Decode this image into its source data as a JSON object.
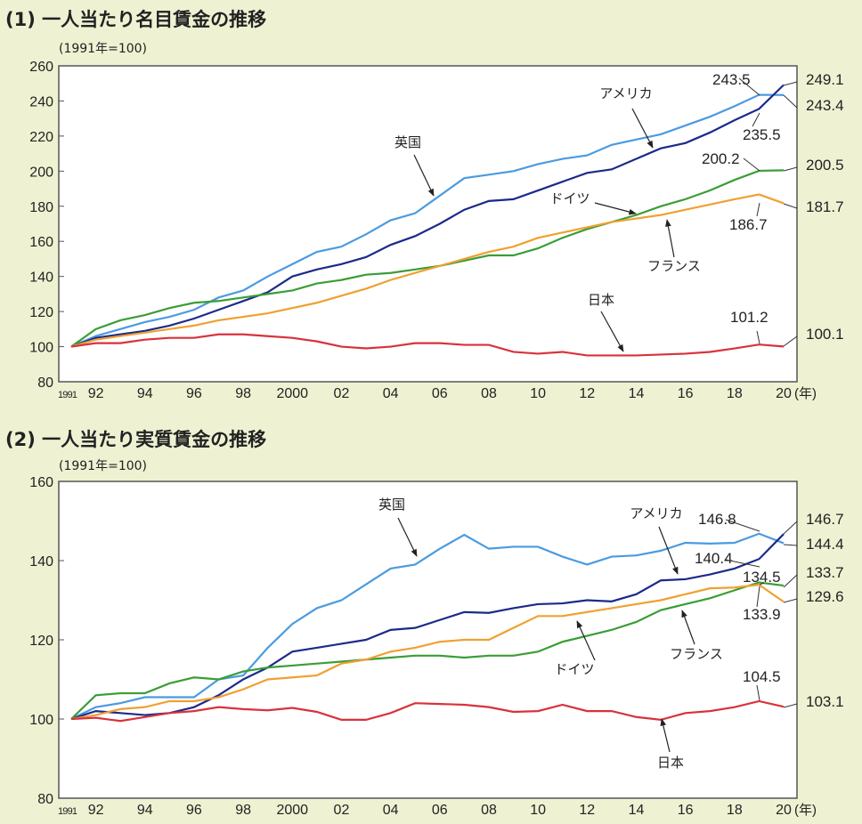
{
  "chart_data": [
    {
      "type": "line",
      "title": "(1) 一人当たり名目賃金の推移",
      "base_note": "(1991年=100)",
      "xunit": "(年)",
      "x_ticks": [
        "1991",
        "92",
        "94",
        "96",
        "98",
        "2000",
        "02",
        "04",
        "06",
        "08",
        "10",
        "12",
        "14",
        "16",
        "18",
        "20"
      ],
      "ylim": [
        80,
        260
      ],
      "y_ticks": [
        80,
        100,
        120,
        140,
        160,
        180,
        200,
        220,
        240,
        260
      ],
      "x": [
        1991,
        1992,
        1993,
        1994,
        1995,
        1996,
        1997,
        1998,
        1999,
        2000,
        2001,
        2002,
        2003,
        2004,
        2005,
        2006,
        2007,
        2008,
        2009,
        2010,
        2011,
        2012,
        2013,
        2014,
        2015,
        2016,
        2017,
        2018,
        2019,
        2020
      ],
      "series": [
        {
          "name": "英国",
          "color": "#4a9be0",
          "values": [
            100,
            106,
            110,
            114,
            117,
            121,
            128,
            132,
            140,
            147,
            154,
            157,
            164,
            172,
            176,
            186,
            196,
            198,
            200,
            204,
            207,
            209,
            215,
            218,
            221,
            226,
            231,
            237,
            243.5,
            243.4
          ]
        },
        {
          "name": "アメリカ",
          "color": "#1c2a8a",
          "values": [
            100,
            105,
            107,
            109,
            112,
            116,
            121,
            126,
            131,
            140,
            144,
            147,
            151,
            158,
            163,
            170,
            178,
            183,
            184,
            189,
            194,
            199,
            201,
            207,
            213,
            216,
            222,
            229,
            235.5,
            249.1
          ]
        },
        {
          "name": "ドイツ",
          "color": "#3a9d35",
          "values": [
            100,
            110,
            115,
            118,
            122,
            125,
            126,
            128,
            130,
            132,
            136,
            138,
            141,
            142,
            144,
            146,
            149,
            152,
            152,
            156,
            162,
            167,
            171,
            175,
            180,
            184,
            189,
            195,
            200.2,
            200.5
          ]
        },
        {
          "name": "フランス",
          "color": "#f0a030",
          "values": [
            100,
            104,
            106,
            108,
            110,
            112,
            115,
            117,
            119,
            122,
            125,
            129,
            133,
            138,
            142,
            146,
            150,
            154,
            157,
            162,
            165,
            168,
            171,
            173,
            175,
            178,
            181,
            184,
            186.7,
            181.7
          ]
        },
        {
          "name": "日本",
          "color": "#d8323c",
          "values": [
            100,
            102,
            102,
            104,
            105,
            105,
            107,
            107,
            106,
            105,
            103,
            100,
            99,
            100,
            102,
            102,
            101,
            101,
            97,
            96,
            97,
            95,
            95,
            95,
            95.5,
            96,
            97,
            99,
            101.2,
            100.1
          ]
        }
      ],
      "annotations": [
        "243.5",
        "249.1",
        "243.4",
        "235.5",
        "200.2",
        "200.5",
        "181.7",
        "186.7",
        "101.2",
        "100.1"
      ]
    },
    {
      "type": "line",
      "title": "(2) 一人当たり実質賃金の推移",
      "base_note": "(1991年=100)",
      "xunit": "(年)",
      "x_ticks": [
        "1991",
        "92",
        "94",
        "96",
        "98",
        "2000",
        "02",
        "04",
        "06",
        "08",
        "10",
        "12",
        "14",
        "16",
        "18",
        "20"
      ],
      "ylim": [
        80,
        160
      ],
      "y_ticks": [
        80,
        100,
        120,
        140,
        160
      ],
      "x": [
        1991,
        1992,
        1993,
        1994,
        1995,
        1996,
        1997,
        1998,
        1999,
        2000,
        2001,
        2002,
        2003,
        2004,
        2005,
        2006,
        2007,
        2008,
        2009,
        2010,
        2011,
        2012,
        2013,
        2014,
        2015,
        2016,
        2017,
        2018,
        2019,
        2020
      ],
      "series": [
        {
          "name": "英国",
          "color": "#4a9be0",
          "values": [
            100,
            103,
            104,
            105.5,
            105.5,
            105.5,
            110,
            111,
            118,
            124,
            128,
            130,
            134,
            138,
            139,
            143,
            146.5,
            143,
            143.5,
            143.5,
            141,
            139,
            141,
            141.3,
            142.5,
            144.5,
            144.3,
            144.5,
            146.8,
            144.4
          ]
        },
        {
          "name": "アメリカ",
          "color": "#1c2a8a",
          "values": [
            100,
            102,
            101.5,
            101,
            101.5,
            103,
            106,
            110,
            113,
            117,
            118,
            119,
            120,
            122.5,
            123,
            125,
            127,
            126.8,
            128,
            129,
            129.2,
            130,
            129.7,
            131.5,
            135,
            135.3,
            136.5,
            138,
            140.4,
            146.7
          ]
        },
        {
          "name": "ドイツ",
          "color": "#3a9d35",
          "values": [
            100,
            106,
            106.5,
            106.5,
            109,
            110.5,
            110,
            112,
            113,
            113.5,
            114,
            114.5,
            115,
            115.5,
            116,
            116,
            115.5,
            116,
            116,
            117,
            119.5,
            121,
            122.5,
            124.5,
            127.5,
            129,
            130.5,
            132.5,
            134.5,
            133.7
          ]
        },
        {
          "name": "フランス",
          "color": "#f0a030",
          "values": [
            100,
            101,
            102.5,
            103,
            104.5,
            104.5,
            105.5,
            107.5,
            110,
            110.5,
            111,
            114,
            115,
            117,
            118,
            119.5,
            120,
            120,
            123,
            126,
            126,
            127,
            128,
            129,
            130,
            131.5,
            133,
            133.2,
            133.9,
            129.6
          ]
        },
        {
          "name": "日本",
          "color": "#d8323c",
          "values": [
            100,
            100.3,
            99.5,
            100.5,
            101.5,
            102,
            103,
            102.5,
            102.2,
            102.8,
            101.8,
            99.8,
            99.8,
            101.5,
            104,
            103.8,
            103.6,
            103,
            101.8,
            102,
            103.6,
            102,
            102,
            100.5,
            99.8,
            101.5,
            102,
            103,
            104.5,
            103.1
          ]
        }
      ],
      "annotations": [
        "146.8",
        "146.7",
        "144.4",
        "140.4",
        "134.5",
        "133.7",
        "129.6",
        "133.9",
        "104.5",
        "103.1"
      ]
    }
  ]
}
